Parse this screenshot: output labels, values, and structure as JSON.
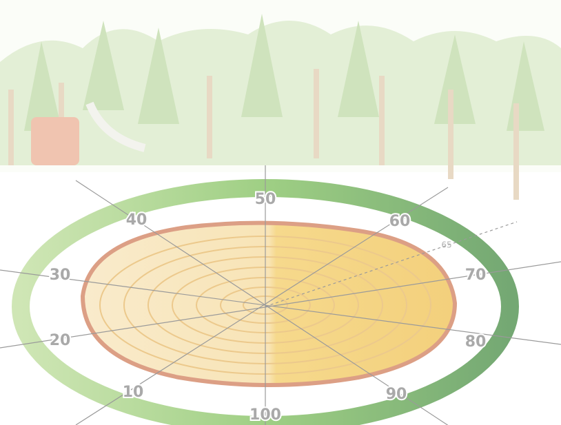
{
  "dial": {
    "labels": [
      "50",
      "40",
      "60",
      "30",
      "70",
      "20",
      "80",
      "10",
      "90",
      "100"
    ],
    "marker": "65"
  }
}
